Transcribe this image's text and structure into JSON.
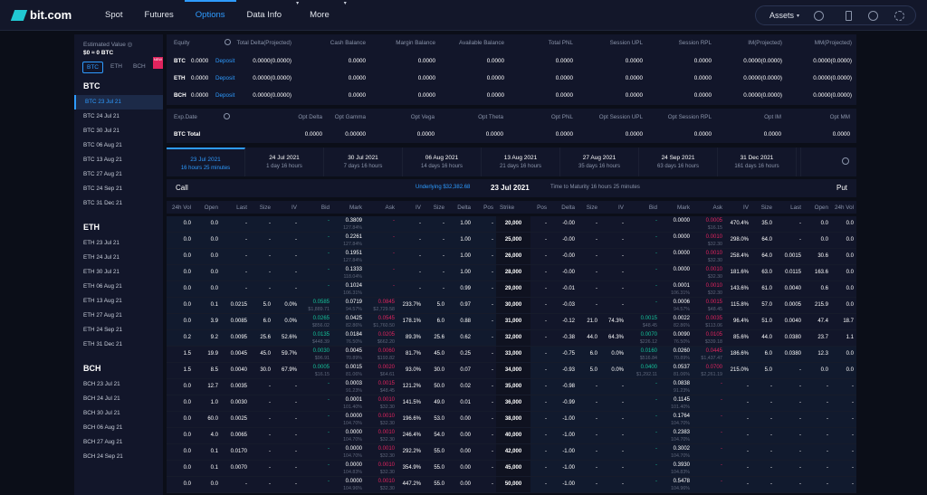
{
  "nav": {
    "brand": "bit.com",
    "items": [
      "Spot",
      "Futures",
      "Options",
      "Data Info",
      "More"
    ],
    "active": "Options",
    "assets": "Assets"
  },
  "sidebar": {
    "est_label": "Estimated Value",
    "est_value": "$0 ≈ 0 BTC",
    "coins": [
      "BTC",
      "ETH",
      "BCH"
    ],
    "new_badge": "NEW",
    "groups": [
      {
        "title": "BTC",
        "items": [
          "BTC 23 Jul 21",
          "BTC 24 Jul 21",
          "BTC 30 Jul 21",
          "BTC 06 Aug 21",
          "BTC 13 Aug 21",
          "BTC 27 Aug 21",
          "BTC 24 Sep 21",
          "BTC 31 Dec 21"
        ]
      },
      {
        "title": "ETH",
        "items": [
          "ETH 23 Jul 21",
          "ETH 24 Jul 21",
          "ETH 30 Jul 21",
          "ETH 06 Aug 21",
          "ETH 13 Aug 21",
          "ETH 27 Aug 21",
          "ETH 24 Sep 21",
          "ETH 31 Dec 21"
        ]
      },
      {
        "title": "BCH",
        "items": [
          "BCH 23 Jul 21",
          "BCH 24 Jul 21",
          "BCH 30 Jul 21",
          "BCH 06 Aug 21",
          "BCH 27 Aug 21",
          "BCH 24 Sep 21"
        ]
      }
    ]
  },
  "equity": {
    "headers": [
      "Equity",
      "Total Delta(Projected)",
      "Cash Balance",
      "Margin Balance",
      "Available Balance",
      "Total PNL",
      "Session UPL",
      "Session RPL",
      "IM(Projected)",
      "MM(Projected)"
    ],
    "deposit": "Deposit",
    "rows": [
      [
        "BTC",
        "0.0000",
        "0.0000(0.0000)",
        "0.0000",
        "0.0000",
        "0.0000",
        "0.0000",
        "0.0000",
        "0.0000",
        "0.0000(0.0000)",
        "0.0000(0.0000)"
      ],
      [
        "ETH",
        "0.0000",
        "0.0000(0.0000)",
        "0.0000",
        "0.0000",
        "0.0000",
        "0.0000",
        "0.0000",
        "0.0000",
        "0.0000(0.0000)",
        "0.0000(0.0000)"
      ],
      [
        "BCH",
        "0.0000",
        "0.0000(0.0000)",
        "0.0000",
        "0.0000",
        "0.0000",
        "0.0000",
        "0.0000",
        "0.0000",
        "0.0000(0.0000)",
        "0.0000(0.0000)"
      ]
    ]
  },
  "expiry": {
    "headers": [
      "Exp.Date",
      "Opt Delta",
      "Opt Gamma",
      "Opt Vega",
      "Opt Theta",
      "Opt PNL",
      "Opt Session UPL",
      "Opt Session RPL",
      "Opt IM",
      "Opt MM"
    ],
    "row": [
      "BTC  Total",
      "0.0000",
      "0.00000",
      "0.0000",
      "0.0000",
      "0.0000",
      "0.0000",
      "0.0000",
      "0.0000",
      "0.0000"
    ]
  },
  "tabs": [
    {
      "d": "23 Jul 2021",
      "s": "16 hours 25 minutes"
    },
    {
      "d": "24 Jul 2021",
      "s": "1 day 16 hours"
    },
    {
      "d": "30 Jul 2021",
      "s": "7 days 16 hours"
    },
    {
      "d": "06 Aug 2021",
      "s": "14 days 16 hours"
    },
    {
      "d": "13 Aug 2021",
      "s": "21 days 16 hours"
    },
    {
      "d": "27 Aug 2021",
      "s": "35 days 16 hours"
    },
    {
      "d": "24 Sep 2021",
      "s": "63 days 16 hours"
    },
    {
      "d": "31 Dec 2021",
      "s": "161 days 16 hours"
    }
  ],
  "chain": {
    "call": "Call",
    "put": "Put",
    "underlying": "Underlying $32,382.68",
    "date": "23 Jul 2021",
    "ttm": "Time to Maturity  16 hours 25 minutes",
    "headers": [
      "24h Vol",
      "Open",
      "Last",
      "Size",
      "IV",
      "Bid",
      "Mark",
      "Ask",
      "IV",
      "Size",
      "Delta",
      "Pos",
      "Strike",
      "Pos",
      "Delta",
      "Size",
      "IV",
      "Bid",
      "Mark",
      "Ask",
      "IV",
      "Size",
      "Last",
      "Open",
      "24h Vol"
    ],
    "rows": [
      {
        "c": [
          "0.0",
          "0.0",
          "-",
          "-",
          "-",
          "-",
          "0.3809",
          "-",
          "-",
          "-",
          "1.00",
          "-"
        ],
        "cs": [
          "",
          "127.84%",
          ""
        ],
        "k": "20,000",
        "p": [
          "-",
          "-0.00",
          "-",
          "-",
          "-",
          "0.0000",
          "0.0005",
          "470.4%",
          "35.0",
          "-",
          "0.0",
          "0.0"
        ],
        "ps": [
          "",
          "",
          "$16.15"
        ]
      },
      {
        "c": [
          "0.0",
          "0.0",
          "-",
          "-",
          "-",
          "-",
          "0.2261",
          "-",
          "-",
          "-",
          "1.00",
          "-"
        ],
        "cs": [
          "",
          "127.84%",
          ""
        ],
        "k": "25,000",
        "p": [
          "-",
          "-0.00",
          "-",
          "-",
          "-",
          "0.0000",
          "0.0010",
          "298.0%",
          "64.0",
          "-",
          "0.0",
          "0.0"
        ],
        "ps": [
          "",
          "",
          "$32.30"
        ]
      },
      {
        "c": [
          "0.0",
          "0.0",
          "-",
          "-",
          "-",
          "-",
          "0.1951",
          "-",
          "-",
          "-",
          "1.00",
          "-"
        ],
        "cs": [
          "",
          "127.84%",
          ""
        ],
        "k": "26,000",
        "p": [
          "-",
          "-0.00",
          "-",
          "-",
          "-",
          "0.0000",
          "0.0010",
          "258.4%",
          "64.0",
          "0.0015",
          "30.6",
          "0.0"
        ],
        "ps": [
          "",
          "",
          "$32.30"
        ]
      },
      {
        "c": [
          "0.0",
          "0.0",
          "-",
          "-",
          "-",
          "-",
          "0.1333",
          "-",
          "-",
          "-",
          "1.00",
          "-"
        ],
        "cs": [
          "",
          "118.04%",
          ""
        ],
        "k": "28,000",
        "p": [
          "-",
          "-0.00",
          "-",
          "-",
          "-",
          "0.0000",
          "0.0010",
          "181.6%",
          "63.0",
          "0.0115",
          "163.6",
          "0.0"
        ],
        "ps": [
          "",
          "",
          "$32.30"
        ]
      },
      {
        "c": [
          "0.0",
          "0.0",
          "-",
          "-",
          "-",
          "-",
          "0.1024",
          "-",
          "-",
          "-",
          "0.99",
          "-"
        ],
        "cs": [
          "",
          "106.31%",
          ""
        ],
        "k": "29,000",
        "p": [
          "-",
          "-0.01",
          "-",
          "-",
          "-",
          "0.0001",
          "0.0010",
          "143.6%",
          "61.0",
          "0.0040",
          "0.6",
          "0.0"
        ],
        "ps": [
          "",
          "106.31%",
          "$32.30"
        ]
      },
      {
        "c": [
          "0.0",
          "0.1",
          "0.0215",
          "5.0",
          "0.0%",
          "0.0585",
          "0.0719",
          "0.0845",
          "233.7%",
          "5.0",
          "0.97",
          "-"
        ],
        "cs": [
          "$1,889.71",
          "94.57%",
          "$2,729.58"
        ],
        "k": "30,000",
        "p": [
          "-",
          "-0.03",
          "-",
          "-",
          "-",
          "0.0006",
          "0.0015",
          "115.8%",
          "57.0",
          "0.0005",
          "215.9",
          "0.0"
        ],
        "ps": [
          "",
          "94.57%",
          "$48.45"
        ]
      },
      {
        "c": [
          "0.0",
          "3.9",
          "0.0085",
          "6.0",
          "0.0%",
          "0.0265",
          "0.0425",
          "0.0545",
          "178.1%",
          "6.0",
          "0.88",
          "-"
        ],
        "cs": [
          "$856.02",
          "82.86%",
          "$1,760.50"
        ],
        "k": "31,000",
        "p": [
          "-",
          "-0.12",
          "21.0",
          "74.3%",
          "0.0015",
          "0.0022",
          "0.0035",
          "96.4%",
          "51.0",
          "0.0040",
          "47.4",
          "18.7"
        ],
        "ps": [
          "$48.45",
          "82.86%",
          "$113.06"
        ]
      },
      {
        "c": [
          "0.2",
          "9.2",
          "0.0095",
          "25.6",
          "52.6%",
          "0.0135",
          "0.0184",
          "0.0205",
          "89.3%",
          "25.6",
          "0.62",
          "-"
        ],
        "cs": [
          "$448.39",
          "76.50%",
          "$662.20"
        ],
        "k": "32,000",
        "p": [
          "-",
          "-0.38",
          "44.0",
          "64.3%",
          "0.0070",
          "0.0090",
          "0.0105",
          "85.6%",
          "44.0",
          "0.0380",
          "23.7",
          "1.1"
        ],
        "ps": [
          "$226.12",
          "76.50%",
          "$339.18"
        ]
      },
      {
        "c": [
          "1.5",
          "19.9",
          "0.0045",
          "45.0",
          "59.7%",
          "0.0030",
          "0.0045",
          "0.0060",
          "81.7%",
          "45.0",
          "0.25",
          "-"
        ],
        "cs": [
          "$96.91",
          "70.89%",
          "$193.82"
        ],
        "k": "33,000",
        "p": [
          "-",
          "-0.75",
          "6.0",
          "0.0%",
          "0.0160",
          "0.0260",
          "0.0445",
          "186.6%",
          "6.0",
          "0.0380",
          "12.3",
          "0.0"
        ],
        "ps": [
          "$516.84",
          "70.89%",
          "$1,437.47"
        ]
      },
      {
        "c": [
          "1.5",
          "8.5",
          "0.0040",
          "30.0",
          "67.9%",
          "0.0005",
          "0.0015",
          "0.0020",
          "93.0%",
          "30.0",
          "0.07",
          "-"
        ],
        "cs": [
          "$16.15",
          "81.06%",
          "$64.61"
        ],
        "k": "34,000",
        "p": [
          "-",
          "-0.93",
          "5.0",
          "0.0%",
          "0.0400",
          "0.0537",
          "0.0700",
          "215.0%",
          "5.0",
          "-",
          "0.0",
          "0.0"
        ],
        "ps": [
          "$1,292.11",
          "81.06%",
          "$2,261.19"
        ]
      },
      {
        "c": [
          "0.0",
          "12.7",
          "0.0035",
          "-",
          "-",
          "-",
          "0.0003",
          "0.0015",
          "121.2%",
          "50.0",
          "0.02",
          "-"
        ],
        "cs": [
          "",
          "91.23%",
          "$48.45"
        ],
        "k": "35,000",
        "p": [
          "-",
          "-0.98",
          "-",
          "-",
          "-",
          "0.0838",
          "-",
          "-",
          "-",
          "-",
          "-",
          "-"
        ],
        "ps": [
          "",
          "91.23%",
          ""
        ]
      },
      {
        "c": [
          "0.0",
          "1.0",
          "0.0030",
          "-",
          "-",
          "-",
          "0.0001",
          "0.0010",
          "141.5%",
          "49.0",
          "0.01",
          "-"
        ],
        "cs": [
          "",
          "101.40%",
          "$32.30"
        ],
        "k": "36,000",
        "p": [
          "-",
          "-0.99",
          "-",
          "-",
          "-",
          "0.1145",
          "-",
          "-",
          "-",
          "-",
          "-",
          "-"
        ],
        "ps": [
          "",
          "101.40%",
          ""
        ]
      },
      {
        "c": [
          "0.0",
          "60.0",
          "0.0025",
          "-",
          "-",
          "-",
          "0.0000",
          "0.0010",
          "196.6%",
          "53.0",
          "0.00",
          "-"
        ],
        "cs": [
          "",
          "104.70%",
          "$32.30"
        ],
        "k": "38,000",
        "p": [
          "-",
          "-1.00",
          "-",
          "-",
          "-",
          "0.1764",
          "-",
          "-",
          "-",
          "-",
          "-",
          "-"
        ],
        "ps": [
          "",
          "104.70%",
          ""
        ]
      },
      {
        "c": [
          "0.0",
          "4.0",
          "0.0065",
          "-",
          "-",
          "-",
          "0.0000",
          "0.0010",
          "246.4%",
          "54.0",
          "0.00",
          "-"
        ],
        "cs": [
          "",
          "104.70%",
          "$32.30"
        ],
        "k": "40,000",
        "p": [
          "-",
          "-1.00",
          "-",
          "-",
          "-",
          "0.2383",
          "-",
          "-",
          "-",
          "-",
          "-",
          "-"
        ],
        "ps": [
          "",
          "104.70%",
          ""
        ]
      },
      {
        "c": [
          "0.0",
          "0.1",
          "0.0170",
          "-",
          "-",
          "-",
          "0.0000",
          "0.0010",
          "292.2%",
          "55.0",
          "0.00",
          "-"
        ],
        "cs": [
          "",
          "104.70%",
          "$32.30"
        ],
        "k": "42,000",
        "p": [
          "-",
          "-1.00",
          "-",
          "-",
          "-",
          "0.3002",
          "-",
          "-",
          "-",
          "-",
          "-",
          "-"
        ],
        "ps": [
          "",
          "104.70%",
          ""
        ]
      },
      {
        "c": [
          "0.0",
          "0.1",
          "0.0070",
          "-",
          "-",
          "-",
          "0.0000",
          "0.0010",
          "354.9%",
          "55.0",
          "0.00",
          "-"
        ],
        "cs": [
          "",
          "104.83%",
          "$32.30"
        ],
        "k": "45,000",
        "p": [
          "-",
          "-1.00",
          "-",
          "-",
          "-",
          "0.3930",
          "-",
          "-",
          "-",
          "-",
          "-",
          "-"
        ],
        "ps": [
          "",
          "104.83%",
          ""
        ]
      },
      {
        "c": [
          "0.0",
          "0.0",
          "-",
          "-",
          "-",
          "-",
          "0.0000",
          "0.0010",
          "447.2%",
          "55.0",
          "0.00",
          "-"
        ],
        "cs": [
          "",
          "104.96%",
          "$32.30"
        ],
        "k": "50,000",
        "p": [
          "-",
          "-1.00",
          "-",
          "-",
          "-",
          "0.5478",
          "-",
          "-",
          "-",
          "-",
          "-",
          "-"
        ],
        "ps": [
          "",
          "104.96%",
          ""
        ]
      }
    ]
  }
}
